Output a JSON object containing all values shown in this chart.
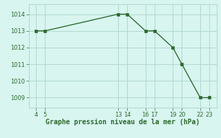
{
  "x": [
    4,
    5,
    13,
    14,
    16,
    17,
    19,
    20,
    22,
    23
  ],
  "y": [
    1013,
    1013,
    1014,
    1014,
    1013,
    1013,
    1012,
    1011,
    1009,
    1009
  ],
  "line_color": "#2d6a2d",
  "marker": "s",
  "marker_size": 2.5,
  "bg_color": "#d8f5f0",
  "grid_color": "#b0d8d0",
  "xlabel": "Graphe pression niveau de la mer (hPa)",
  "xlabel_fontsize": 7.0,
  "xticks": [
    4,
    5,
    13,
    14,
    16,
    17,
    19,
    20,
    22,
    23
  ],
  "yticks": [
    1009,
    1010,
    1011,
    1012,
    1013,
    1014
  ],
  "ylim": [
    1008.4,
    1014.6
  ],
  "xlim": [
    3.2,
    23.8
  ],
  "tick_fontsize": 6.0
}
